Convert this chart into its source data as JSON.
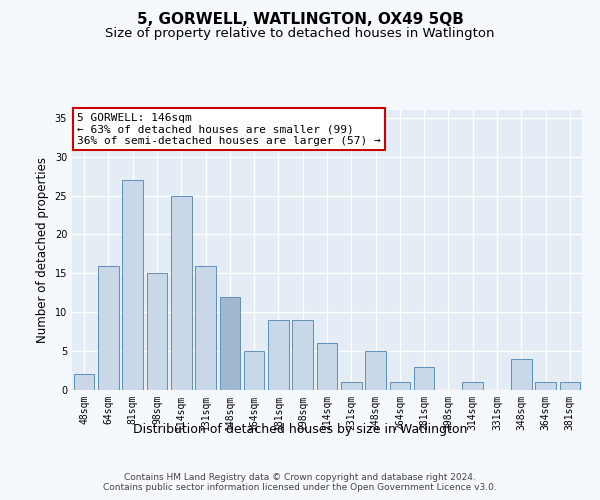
{
  "title": "5, GORWELL, WATLINGTON, OX49 5QB",
  "subtitle": "Size of property relative to detached houses in Watlington",
  "xlabel": "Distribution of detached houses by size in Watlington",
  "ylabel": "Number of detached properties",
  "categories": [
    "48sqm",
    "64sqm",
    "81sqm",
    "98sqm",
    "114sqm",
    "131sqm",
    "148sqm",
    "164sqm",
    "181sqm",
    "198sqm",
    "214sqm",
    "231sqm",
    "248sqm",
    "264sqm",
    "281sqm",
    "298sqm",
    "314sqm",
    "331sqm",
    "348sqm",
    "364sqm",
    "381sqm"
  ],
  "values": [
    2,
    16,
    27,
    15,
    25,
    16,
    12,
    5,
    9,
    9,
    6,
    1,
    5,
    1,
    3,
    0,
    1,
    0,
    4,
    1,
    1
  ],
  "bar_color": "#c8d8e8",
  "bar_edge_color": "#6090b8",
  "highlight_bar_index": 6,
  "highlight_bar_color": "#a0b8d0",
  "annotation_box_text": "5 GORWELL: 146sqm\n← 63% of detached houses are smaller (99)\n36% of semi-detached houses are larger (57) →",
  "annotation_box_color": "#ffffff",
  "annotation_box_edge_color": "#cc0000",
  "ylim": [
    0,
    36
  ],
  "yticks": [
    0,
    5,
    10,
    15,
    20,
    25,
    30,
    35
  ],
  "fig_background_color": "#f5f8fc",
  "ax_background_color": "#e4edf5",
  "grid_color": "#ffffff",
  "footer_line1": "Contains HM Land Registry data © Crown copyright and database right 2024.",
  "footer_line2": "Contains public sector information licensed under the Open Government Licence v3.0.",
  "title_fontsize": 11,
  "subtitle_fontsize": 9.5,
  "xlabel_fontsize": 9,
  "ylabel_fontsize": 8.5,
  "tick_fontsize": 7,
  "annotation_fontsize": 8,
  "footer_fontsize": 6.5
}
